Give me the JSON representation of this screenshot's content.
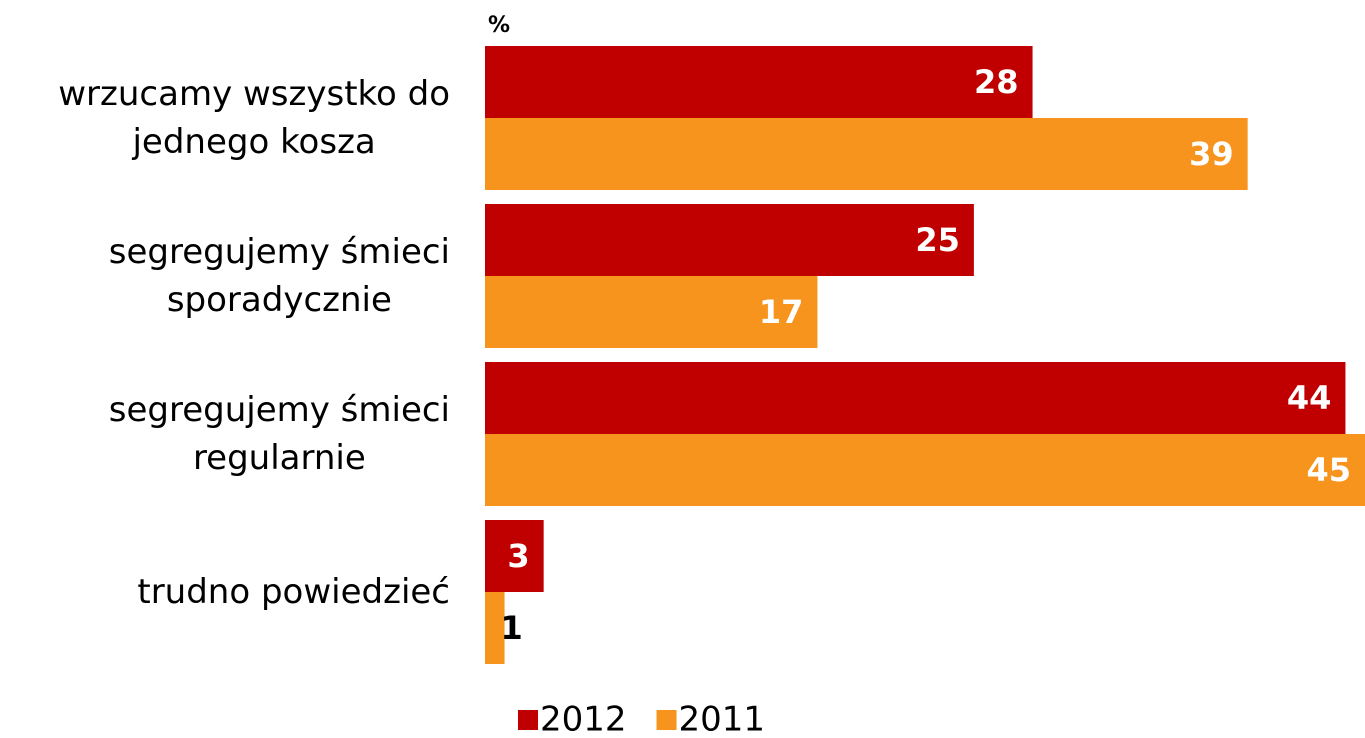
{
  "chart_data": {
    "type": "hbar",
    "xlabel": "%",
    "categories": [
      "wrzucamy wszystko do\njednego kosza",
      "segregujemy śmieci\nsporadycznie",
      "segregujemy śmieci\nregularnie",
      "trudno powiedzieć"
    ],
    "series": [
      {
        "name": "2012",
        "color": "#c00000",
        "values": [
          28,
          25,
          44,
          3
        ]
      },
      {
        "name": "2011",
        "color": "#f7941d",
        "values": [
          39,
          17,
          45,
          1
        ]
      }
    ],
    "xlim": [
      0,
      45
    ],
    "legend": "bottom"
  }
}
